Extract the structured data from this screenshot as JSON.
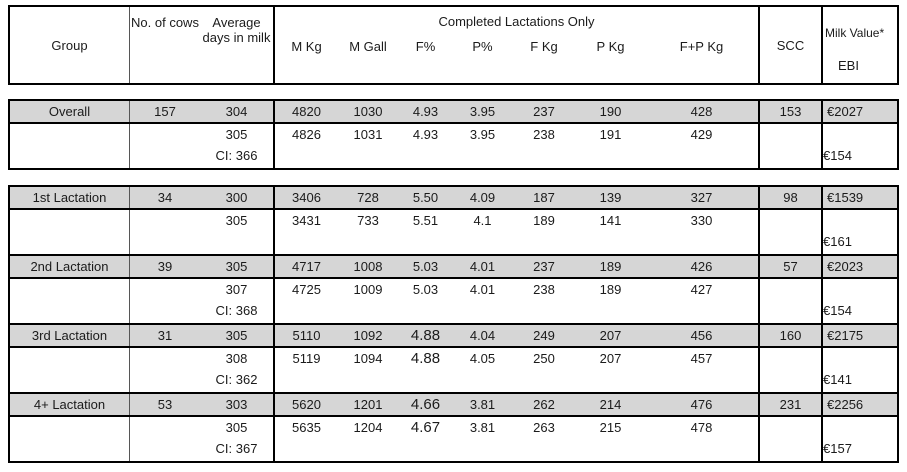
{
  "header": {
    "group": "Group",
    "cows": "No. of cows",
    "days": "Average days in milk",
    "completed_title": "Completed Lactations Only",
    "sub_columns": [
      "M Kg",
      "M Gall",
      "F%",
      "P%",
      "F Kg",
      "P Kg",
      "F+P Kg"
    ],
    "scc": "SCC",
    "milk_value": "Milk Value*",
    "ebi": "EBI"
  },
  "blocks": [
    {
      "group": "Overall",
      "cows": "157",
      "days": "304",
      "vals": [
        "4820",
        "1030",
        "4.93",
        "3.95",
        "237",
        "190",
        "428"
      ],
      "scc": "153",
      "milk_value": "€2027",
      "days2": "305",
      "ci": "CI: 366",
      "vals2": [
        "4826",
        "1031",
        "4.93",
        "3.95",
        "238",
        "191",
        "429"
      ],
      "ebi": "€154"
    },
    {
      "group": "1st Lactation",
      "cows": "34",
      "days": "300",
      "vals": [
        "3406",
        "728",
        "5.50",
        "4.09",
        "187",
        "139",
        "327"
      ],
      "scc": "98",
      "milk_value": "€1539",
      "days2": "305",
      "ci": "",
      "vals2": [
        "3431",
        "733",
        "5.51",
        "4.1",
        "189",
        "141",
        "330"
      ],
      "ebi": "€161"
    },
    {
      "group": "2nd Lactation",
      "cows": "39",
      "days": "305",
      "vals": [
        "4717",
        "1008",
        "5.03",
        "4.01",
        "237",
        "189",
        "426"
      ],
      "scc": "57",
      "milk_value": "€2023",
      "days2": "307",
      "ci": "CI: 368",
      "vals2": [
        "4725",
        "1009",
        "5.03",
        "4.01",
        "238",
        "189",
        "427"
      ],
      "ebi": "€154"
    },
    {
      "group": "3rd Lactation",
      "cows": "31",
      "days": "305",
      "vals": [
        "5110",
        "1092",
        "4.88",
        "4.04",
        "249",
        "207",
        "456"
      ],
      "scc": "160",
      "milk_value": "€2175",
      "days2": "308",
      "ci": "CI: 362",
      "vals2": [
        "5119",
        "1094",
        "4.88",
        "4.05",
        "250",
        "207",
        "457"
      ],
      "ebi": "€141"
    },
    {
      "group": "4+ Lactation",
      "cows": "53",
      "days": "303",
      "vals": [
        "5620",
        "1201",
        "4.66",
        "3.81",
        "262",
        "214",
        "476"
      ],
      "scc": "231",
      "milk_value": "€2256",
      "days2": "305",
      "ci": "CI: 367",
      "vals2": [
        "5635",
        "1204",
        "4.67",
        "3.81",
        "263",
        "215",
        "478"
      ],
      "ebi": "€157"
    }
  ],
  "colors": {
    "row_shade": "#d6d6d6",
    "border": "#000000",
    "text": "#1b1b1b"
  }
}
